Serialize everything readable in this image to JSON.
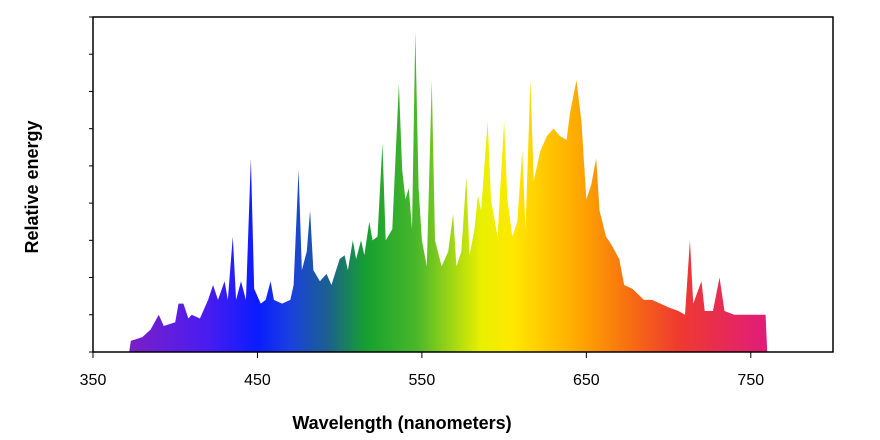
{
  "chart_data": {
    "type": "area",
    "xlabel": "Wavelength (nanometers)",
    "ylabel": "Relative energy",
    "x": [
      372,
      373,
      380,
      385,
      390,
      393,
      400,
      402,
      405,
      408,
      410,
      415,
      420,
      423,
      426,
      430,
      432,
      435,
      437,
      440,
      443,
      446,
      448,
      452,
      455,
      458,
      460,
      465,
      470,
      472,
      475,
      477,
      480,
      482,
      484,
      488,
      492,
      495,
      500,
      503,
      505,
      508,
      510,
      513,
      515,
      518,
      520,
      523,
      526,
      528,
      532,
      536,
      538,
      540,
      542,
      544,
      546,
      548,
      550,
      553,
      556,
      558,
      562,
      566,
      569,
      571,
      574,
      577,
      579,
      582,
      584,
      586,
      590,
      592,
      596,
      600,
      602,
      605,
      608,
      611,
      613,
      616,
      618,
      622,
      626,
      630,
      634,
      638,
      640,
      644,
      647,
      650,
      653,
      656,
      658,
      662,
      665,
      670,
      673,
      678,
      685,
      690,
      695,
      700,
      706,
      710,
      713,
      715,
      720,
      722,
      727,
      731,
      734,
      740,
      748,
      755,
      759,
      760
    ],
    "values": [
      0,
      0.3,
      0.4,
      0.6,
      1.0,
      0.7,
      0.8,
      1.3,
      1.3,
      0.9,
      1.0,
      0.9,
      1.4,
      1.8,
      1.4,
      1.9,
      1.4,
      3.1,
      1.4,
      1.9,
      1.4,
      5.2,
      1.7,
      1.3,
      1.4,
      1.9,
      1.4,
      1.3,
      1.4,
      1.8,
      4.9,
      2.2,
      2.7,
      3.8,
      2.2,
      1.9,
      2.1,
      1.8,
      2.5,
      2.6,
      2.2,
      3.0,
      2.5,
      3.0,
      2.6,
      3.5,
      3.0,
      3.1,
      5.6,
      3.0,
      3.3,
      7.2,
      4.9,
      4.1,
      4.4,
      3.3,
      8.6,
      4.4,
      3.0,
      2.3,
      7.3,
      3.0,
      2.3,
      2.7,
      3.7,
      2.3,
      2.7,
      4.7,
      2.6,
      3.3,
      4.2,
      3.8,
      6.2,
      4.1,
      3.1,
      6.2,
      4.1,
      3.1,
      3.5,
      5.4,
      3.3,
      7.3,
      4.6,
      5.4,
      5.8,
      6.0,
      5.8,
      5.7,
      6.4,
      7.3,
      6.2,
      4.1,
      4.5,
      5.2,
      3.8,
      3.1,
      2.9,
      2.5,
      1.8,
      1.7,
      1.4,
      1.4,
      1.3,
      1.2,
      1.1,
      1.0,
      3.0,
      1.3,
      1.9,
      1.1,
      1.1,
      2.0,
      1.1,
      1.0,
      1.0,
      1.0,
      1.0,
      0
    ],
    "xlim": [
      350,
      800
    ],
    "ylim": [
      0,
      9
    ],
    "xticks": [
      350,
      450,
      550,
      650,
      750
    ],
    "yticks": [
      0,
      1,
      2,
      3,
      4,
      5,
      6,
      7,
      8,
      9
    ]
  }
}
